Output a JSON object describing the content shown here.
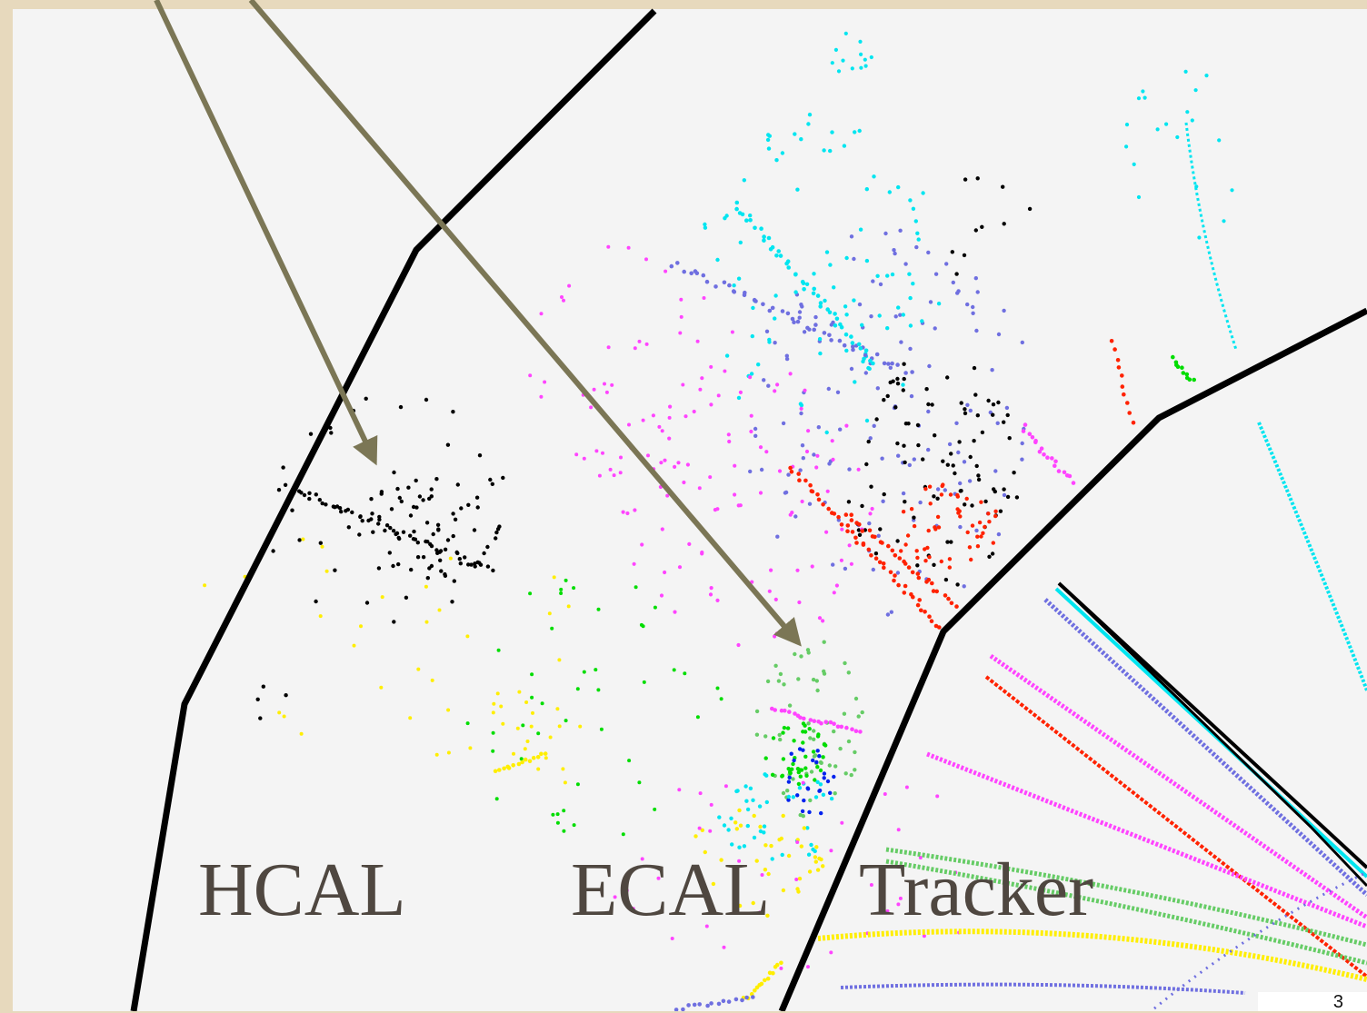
{
  "labels": {
    "hcal": "HCAL",
    "ecal": "ECAL",
    "tracker": "Tracker"
  },
  "page_number": "3",
  "colors": {
    "background": "#e7d9bd",
    "panel": "#f4f4f4",
    "boundary": "#000000",
    "arrow": "#7b7655",
    "hit_colors": [
      "#00e5f0",
      "#6f6fe0",
      "#ff44ff",
      "#ff2200",
      "#00dd00",
      "#66cc66",
      "#ffee00",
      "#0022ee",
      "#000000"
    ]
  },
  "legend": "none"
}
